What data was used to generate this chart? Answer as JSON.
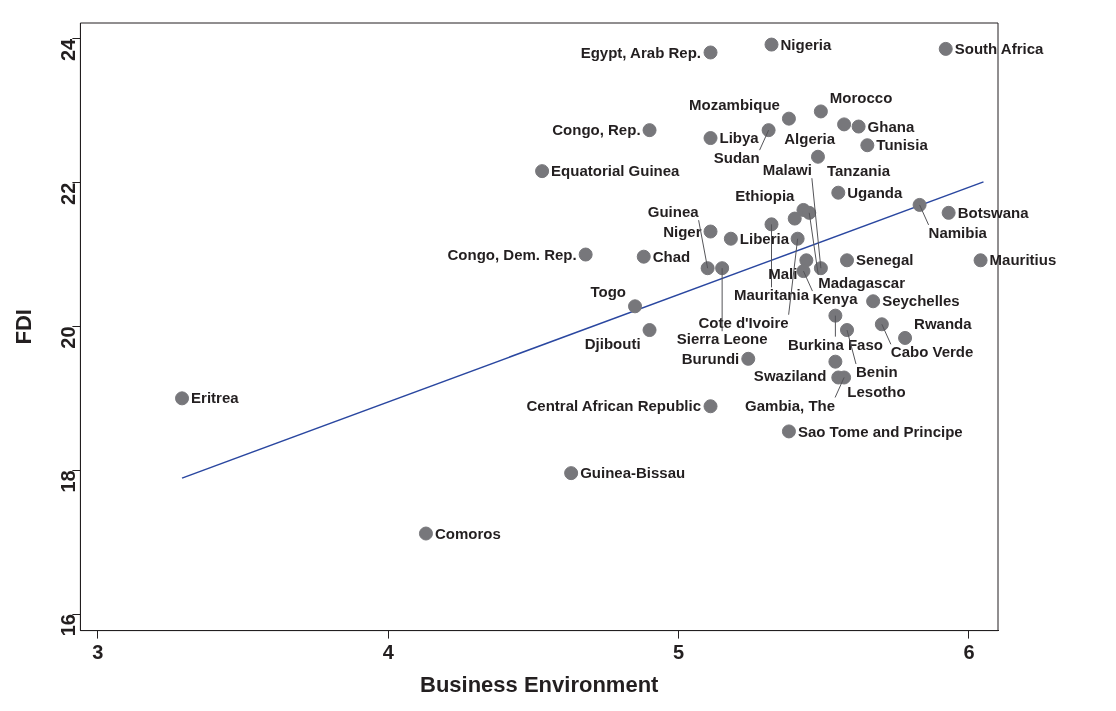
{
  "chart_data": {
    "type": "scatter",
    "xlabel": "Business Environment",
    "ylabel": "FDI",
    "xlim": [
      2.94,
      6.1
    ],
    "xticks": [
      3,
      4,
      5,
      6
    ],
    "ylim": [
      15.77,
      24.22
    ],
    "yticks": [
      16,
      18,
      20,
      22,
      24
    ],
    "grid": false,
    "legend": false,
    "series": [
      {
        "type": "scatter",
        "marker": "circle",
        "color": "#77777b",
        "x": [
          5.32,
          5.11,
          5.92,
          5.49,
          5.38,
          5.57,
          5.62,
          4.9,
          5.11,
          5.31,
          5.65,
          5.48,
          4.53,
          5.55,
          5.83,
          5.43,
          5.45,
          5.93,
          5.4,
          5.32,
          5.11,
          5.18,
          5.41,
          4.68,
          4.88,
          5.1,
          5.15,
          5.44,
          5.58,
          5.43,
          5.49,
          6.04,
          4.85,
          4.9,
          5.67,
          5.54,
          5.58,
          5.7,
          5.78,
          5.24,
          5.54,
          5.55,
          5.57,
          5.11,
          5.38,
          4.63,
          4.13,
          3.29
        ],
        "values": [
          23.92,
          23.81,
          23.86,
          22.99,
          22.89,
          22.81,
          22.78,
          22.73,
          22.62,
          22.73,
          22.52,
          22.36,
          22.16,
          21.86,
          21.69,
          21.62,
          21.58,
          21.58,
          21.5,
          21.42,
          21.32,
          21.22,
          21.22,
          21.0,
          20.97,
          20.81,
          20.81,
          20.92,
          20.92,
          20.77,
          20.81,
          20.92,
          20.28,
          19.95,
          20.35,
          20.15,
          19.95,
          20.03,
          19.84,
          19.55,
          19.51,
          19.29,
          19.29,
          18.89,
          18.54,
          17.96,
          17.12,
          19.0
        ]
      },
      {
        "type": "line",
        "color": "#2a47a0",
        "x": [
          3.29,
          6.05
        ],
        "values": [
          17.89,
          22.01
        ]
      }
    ],
    "annotations": [
      {
        "text": "Nigeria",
        "x": 5.32,
        "y": 23.92
      },
      {
        "text": "Egypt, Arab Rep.",
        "x": 5.11,
        "y": 23.81
      },
      {
        "text": "South Africa",
        "x": 5.92,
        "y": 23.86
      },
      {
        "text": "Morocco",
        "x": 5.49,
        "y": 22.99
      },
      {
        "text": "Mozambique",
        "x": 5.38,
        "y": 22.89
      },
      {
        "text": "Algeria",
        "x": 5.57,
        "y": 22.81
      },
      {
        "text": "Ghana",
        "x": 5.62,
        "y": 22.78
      },
      {
        "text": "Congo, Rep.",
        "x": 4.9,
        "y": 22.73
      },
      {
        "text": "Libya",
        "x": 5.11,
        "y": 22.62
      },
      {
        "text": "Sudan",
        "x": 5.31,
        "y": 22.73
      },
      {
        "text": "Tunisia",
        "x": 5.65,
        "y": 22.52
      },
      {
        "text": "Tanzania",
        "x": 5.48,
        "y": 22.36
      },
      {
        "text": "Equatorial Guinea",
        "x": 4.53,
        "y": 22.16
      },
      {
        "text": "Uganda",
        "x": 5.55,
        "y": 21.86
      },
      {
        "text": "Namibia",
        "x": 5.83,
        "y": 21.69
      },
      {
        "text": "Ethiopia",
        "x": 5.43,
        "y": 21.62
      },
      {
        "text": "Madagascar",
        "x": 5.45,
        "y": 21.58
      },
      {
        "text": "Botswana",
        "x": 5.93,
        "y": 21.58
      },
      {
        "text": "Mauritania",
        "x": 5.32,
        "y": 21.42
      },
      {
        "text": "Niger",
        "x": 5.11,
        "y": 21.32
      },
      {
        "text": "Liberia",
        "x": 5.18,
        "y": 21.22
      },
      {
        "text": "Cote d'Ivoire",
        "x": 5.41,
        "y": 21.22
      },
      {
        "text": "Congo, Dem. Rep.",
        "x": 4.68,
        "y": 21.0
      },
      {
        "text": "Chad",
        "x": 4.88,
        "y": 20.97
      },
      {
        "text": "Guinea",
        "x": 5.1,
        "y": 20.81
      },
      {
        "text": "Sierra Leone",
        "x": 5.15,
        "y": 20.81
      },
      {
        "text": "Mali",
        "x": 5.44,
        "y": 20.92
      },
      {
        "text": "Senegal",
        "x": 5.58,
        "y": 20.92
      },
      {
        "text": "Kenya",
        "x": 5.43,
        "y": 20.77
      },
      {
        "text": "Malawi",
        "x": 5.49,
        "y": 20.81
      },
      {
        "text": "Mauritius",
        "x": 6.04,
        "y": 20.92
      },
      {
        "text": "Togo",
        "x": 4.85,
        "y": 20.28
      },
      {
        "text": "Djibouti",
        "x": 4.9,
        "y": 19.95
      },
      {
        "text": "Seychelles",
        "x": 5.67,
        "y": 20.35
      },
      {
        "text": "Burkina Faso",
        "x": 5.54,
        "y": 20.15
      },
      {
        "text": "Benin",
        "x": 5.58,
        "y": 19.95
      },
      {
        "text": "Cabo Verde",
        "x": 5.7,
        "y": 20.03
      },
      {
        "text": "Rwanda",
        "x": 5.78,
        "y": 19.84
      },
      {
        "text": "Burundi",
        "x": 5.24,
        "y": 19.55
      },
      {
        "text": "Swaziland",
        "x": 5.54,
        "y": 19.51
      },
      {
        "text": "Lesotho",
        "x": 5.55,
        "y": 19.29
      },
      {
        "text": "Gambia, The",
        "x": 5.57,
        "y": 19.29
      },
      {
        "text": "Central African Republic",
        "x": 5.11,
        "y": 18.89
      },
      {
        "text": "Sao Tome and Principe",
        "x": 5.38,
        "y": 18.54
      },
      {
        "text": "Guinea-Bissau",
        "x": 4.63,
        "y": 17.96
      },
      {
        "text": "Comoros",
        "x": 4.13,
        "y": 17.12
      },
      {
        "text": "Eritrea",
        "x": 3.29,
        "y": 19.0
      }
    ]
  }
}
